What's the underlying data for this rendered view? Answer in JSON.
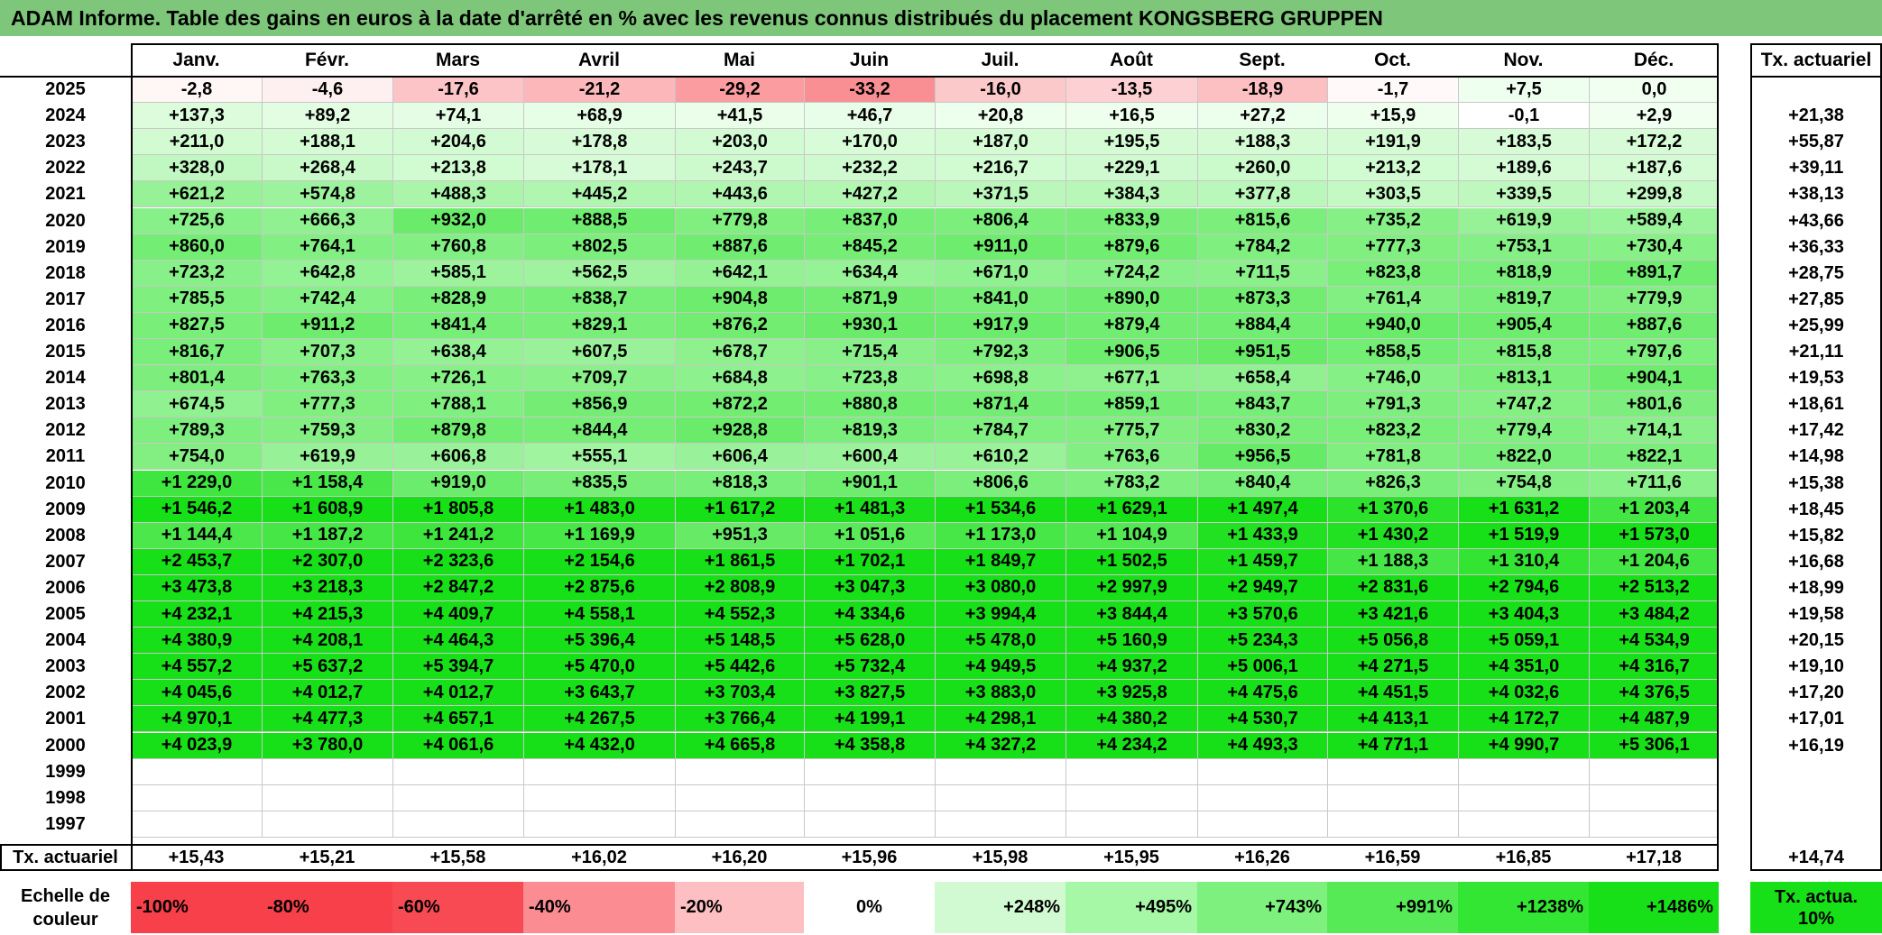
{
  "title": "ADAM Informe. Table des gains en euros à la date d'arrêté en % avec les revenus connus distribués du placement KONGSBERG GRUPPEN",
  "months": [
    "Janv.",
    "Févr.",
    "Mars",
    "Avril",
    "Mai",
    "Juin",
    "Juil.",
    "Août",
    "Sept.",
    "Oct.",
    "Nov.",
    "Déc."
  ],
  "annual_header": "Tx. actuariel",
  "rows": [
    {
      "year": "2025",
      "values": [
        "-2,8",
        "-4,6",
        "-17,6",
        "-21,2",
        "-29,2",
        "-33,2",
        "-16,0",
        "-13,5",
        "-18,9",
        "-1,7",
        "+7,5",
        "0,0"
      ],
      "annual": ""
    },
    {
      "year": "2024",
      "values": [
        "+137,3",
        "+89,2",
        "+74,1",
        "+68,9",
        "+41,5",
        "+46,7",
        "+20,8",
        "+16,5",
        "+27,2",
        "+15,9",
        "-0,1",
        "+2,9"
      ],
      "annual": "+21,38"
    },
    {
      "year": "2023",
      "values": [
        "+211,0",
        "+188,1",
        "+204,6",
        "+178,8",
        "+203,0",
        "+170,0",
        "+187,0",
        "+195,5",
        "+188,3",
        "+191,9",
        "+183,5",
        "+172,2"
      ],
      "annual": "+55,87"
    },
    {
      "year": "2022",
      "values": [
        "+328,0",
        "+268,4",
        "+213,8",
        "+178,1",
        "+243,7",
        "+232,2",
        "+216,7",
        "+229,1",
        "+260,0",
        "+213,2",
        "+189,6",
        "+187,6"
      ],
      "annual": "+39,11"
    },
    {
      "year": "2021",
      "values": [
        "+621,2",
        "+574,8",
        "+488,3",
        "+445,2",
        "+443,6",
        "+427,2",
        "+371,5",
        "+384,3",
        "+377,8",
        "+303,5",
        "+339,5",
        "+299,8"
      ],
      "annual": "+38,13"
    },
    {
      "year": "2020",
      "values": [
        "+725,6",
        "+666,3",
        "+932,0",
        "+888,5",
        "+779,8",
        "+837,0",
        "+806,4",
        "+833,9",
        "+815,6",
        "+735,2",
        "+619,9",
        "+589,4"
      ],
      "annual": "+43,66"
    },
    {
      "year": "2019",
      "values": [
        "+860,0",
        "+764,1",
        "+760,8",
        "+802,5",
        "+887,6",
        "+845,2",
        "+911,0",
        "+879,6",
        "+784,2",
        "+777,3",
        "+753,1",
        "+730,4"
      ],
      "annual": "+36,33"
    },
    {
      "year": "2018",
      "values": [
        "+723,2",
        "+642,8",
        "+585,1",
        "+562,5",
        "+642,1",
        "+634,4",
        "+671,0",
        "+724,2",
        "+711,5",
        "+823,8",
        "+818,9",
        "+891,7"
      ],
      "annual": "+28,75"
    },
    {
      "year": "2017",
      "values": [
        "+785,5",
        "+742,4",
        "+828,9",
        "+838,7",
        "+904,8",
        "+871,9",
        "+841,0",
        "+890,0",
        "+873,3",
        "+761,4",
        "+819,7",
        "+779,9"
      ],
      "annual": "+27,85"
    },
    {
      "year": "2016",
      "values": [
        "+827,5",
        "+911,2",
        "+841,4",
        "+829,1",
        "+876,2",
        "+930,1",
        "+917,9",
        "+879,4",
        "+884,4",
        "+940,0",
        "+905,4",
        "+887,6"
      ],
      "annual": "+25,99"
    },
    {
      "year": "2015",
      "values": [
        "+816,7",
        "+707,3",
        "+638,4",
        "+607,5",
        "+678,7",
        "+715,4",
        "+792,3",
        "+906,5",
        "+951,5",
        "+858,5",
        "+815,8",
        "+797,6"
      ],
      "annual": "+21,11"
    },
    {
      "year": "2014",
      "values": [
        "+801,4",
        "+763,3",
        "+726,1",
        "+709,7",
        "+684,8",
        "+723,8",
        "+698,8",
        "+677,1",
        "+658,4",
        "+746,0",
        "+813,1",
        "+904,1"
      ],
      "annual": "+19,53"
    },
    {
      "year": "2013",
      "values": [
        "+674,5",
        "+777,3",
        "+788,1",
        "+856,9",
        "+872,2",
        "+880,8",
        "+871,4",
        "+859,1",
        "+843,7",
        "+791,3",
        "+747,2",
        "+801,6"
      ],
      "annual": "+18,61"
    },
    {
      "year": "2012",
      "values": [
        "+789,3",
        "+759,3",
        "+879,8",
        "+844,4",
        "+928,8",
        "+819,3",
        "+784,7",
        "+775,7",
        "+830,2",
        "+823,2",
        "+779,4",
        "+714,1"
      ],
      "annual": "+17,42"
    },
    {
      "year": "2011",
      "values": [
        "+754,0",
        "+619,9",
        "+606,8",
        "+555,1",
        "+606,4",
        "+600,4",
        "+610,2",
        "+763,6",
        "+956,5",
        "+781,8",
        "+822,0",
        "+822,1"
      ],
      "annual": "+14,98"
    },
    {
      "year": "2010",
      "values": [
        "+1 229,0",
        "+1 158,4",
        "+919,0",
        "+835,5",
        "+818,3",
        "+901,1",
        "+806,6",
        "+783,2",
        "+840,4",
        "+826,3",
        "+754,8",
        "+711,6"
      ],
      "annual": "+15,38"
    },
    {
      "year": "2009",
      "values": [
        "+1 546,2",
        "+1 608,9",
        "+1 805,8",
        "+1 483,0",
        "+1 617,2",
        "+1 481,3",
        "+1 534,6",
        "+1 629,1",
        "+1 497,4",
        "+1 370,6",
        "+1 631,2",
        "+1 203,4"
      ],
      "annual": "+18,45"
    },
    {
      "year": "2008",
      "values": [
        "+1 144,4",
        "+1 187,2",
        "+1 241,2",
        "+1 169,9",
        "+951,3",
        "+1 051,6",
        "+1 173,0",
        "+1 104,9",
        "+1 433,9",
        "+1 430,2",
        "+1 519,9",
        "+1 573,0"
      ],
      "annual": "+15,82"
    },
    {
      "year": "2007",
      "values": [
        "+2 453,7",
        "+2 307,0",
        "+2 323,6",
        "+2 154,6",
        "+1 861,5",
        "+1 702,1",
        "+1 849,7",
        "+1 502,5",
        "+1 459,7",
        "+1 188,3",
        "+1 310,4",
        "+1 204,6"
      ],
      "annual": "+16,68"
    },
    {
      "year": "2006",
      "values": [
        "+3 473,8",
        "+3 218,3",
        "+2 847,2",
        "+2 875,6",
        "+2 808,9",
        "+3 047,3",
        "+3 080,0",
        "+2 997,9",
        "+2 949,7",
        "+2 831,6",
        "+2 794,6",
        "+2 513,2"
      ],
      "annual": "+18,99"
    },
    {
      "year": "2005",
      "values": [
        "+4 232,1",
        "+4 215,3",
        "+4 409,7",
        "+4 558,1",
        "+4 552,3",
        "+4 334,6",
        "+3 994,4",
        "+3 844,4",
        "+3 570,6",
        "+3 421,6",
        "+3 404,3",
        "+3 484,2"
      ],
      "annual": "+19,58"
    },
    {
      "year": "2004",
      "values": [
        "+4 380,9",
        "+4 208,1",
        "+4 464,3",
        "+5 396,4",
        "+5 148,5",
        "+5 628,0",
        "+5 478,0",
        "+5 160,9",
        "+5 234,3",
        "+5 056,8",
        "+5 059,1",
        "+4 534,9"
      ],
      "annual": "+20,15"
    },
    {
      "year": "2003",
      "values": [
        "+4 557,2",
        "+5 637,2",
        "+5 394,7",
        "+5 470,0",
        "+5 442,6",
        "+5 732,4",
        "+4 949,5",
        "+4 937,2",
        "+5 006,1",
        "+4 271,5",
        "+4 351,0",
        "+4 316,7"
      ],
      "annual": "+19,10"
    },
    {
      "year": "2002",
      "values": [
        "+4 045,6",
        "+4 012,7",
        "+4 012,7",
        "+3 643,7",
        "+3 703,4",
        "+3 827,5",
        "+3 883,0",
        "+3 925,8",
        "+4 475,6",
        "+4 451,5",
        "+4 032,6",
        "+4 376,5"
      ],
      "annual": "+17,20"
    },
    {
      "year": "2001",
      "values": [
        "+4 970,1",
        "+4 477,3",
        "+4 657,1",
        "+4 267,5",
        "+3 766,4",
        "+4 199,1",
        "+4 298,1",
        "+4 380,2",
        "+4 530,7",
        "+4 413,1",
        "+4 172,7",
        "+4 487,9"
      ],
      "annual": "+17,01"
    },
    {
      "year": "2000",
      "values": [
        "+4 023,9",
        "+3 780,0",
        "+4 061,6",
        "+4 432,0",
        "+4 665,8",
        "+4 358,8",
        "+4 327,2",
        "+4 234,2",
        "+4 493,3",
        "+4 771,1",
        "+4 990,7",
        "+5 306,1"
      ],
      "annual": "+16,19"
    },
    {
      "year": "1999",
      "values": [
        "",
        "",
        "",
        "",
        "",
        "",
        "",
        "",
        "",
        "",
        "",
        ""
      ],
      "annual": ""
    },
    {
      "year": "1998",
      "values": [
        "",
        "",
        "",
        "",
        "",
        "",
        "",
        "",
        "",
        "",
        "",
        ""
      ],
      "annual": ""
    },
    {
      "year": "1997",
      "values": [
        "",
        "",
        "",
        "",
        "",
        "",
        "",
        "",
        "",
        "",
        "",
        ""
      ],
      "annual": ""
    }
  ],
  "footer_label": "Tx. actuariel",
  "footer_values": [
    "+15,43",
    "+15,21",
    "+15,58",
    "+16,02",
    "+16,20",
    "+15,96",
    "+15,98",
    "+15,95",
    "+16,26",
    "+16,59",
    "+16,85",
    "+17,18"
  ],
  "footer_annual": "+14,74",
  "scale_label": "Echelle de couleur",
  "scale": [
    {
      "text": "-100%",
      "color": "#f8404a",
      "align": "left"
    },
    {
      "text": "-80%",
      "color": "#f8404a",
      "align": "left"
    },
    {
      "text": "-60%",
      "color": "#f84a52",
      "align": "left"
    },
    {
      "text": "-40%",
      "color": "#fb8c92",
      "align": "left"
    },
    {
      "text": "-20%",
      "color": "#fdbfc2",
      "align": "left"
    },
    {
      "text": "0%",
      "color": "#ffffff",
      "align": "center"
    },
    {
      "text": "+248%",
      "color": "#d2fad2",
      "align": "right"
    },
    {
      "text": "+495%",
      "color": "#a6f7a6",
      "align": "right"
    },
    {
      "text": "+743%",
      "color": "#7df07d",
      "align": "right"
    },
    {
      "text": "+991%",
      "color": "#56ea56",
      "align": "right"
    },
    {
      "text": "+1238%",
      "color": "#33e633",
      "align": "right"
    },
    {
      "text": "+1486%",
      "color": "#18e018",
      "align": "right"
    }
  ],
  "scale_annual": {
    "text": "Tx. actua. 10%",
    "color": "#18e018"
  }
}
